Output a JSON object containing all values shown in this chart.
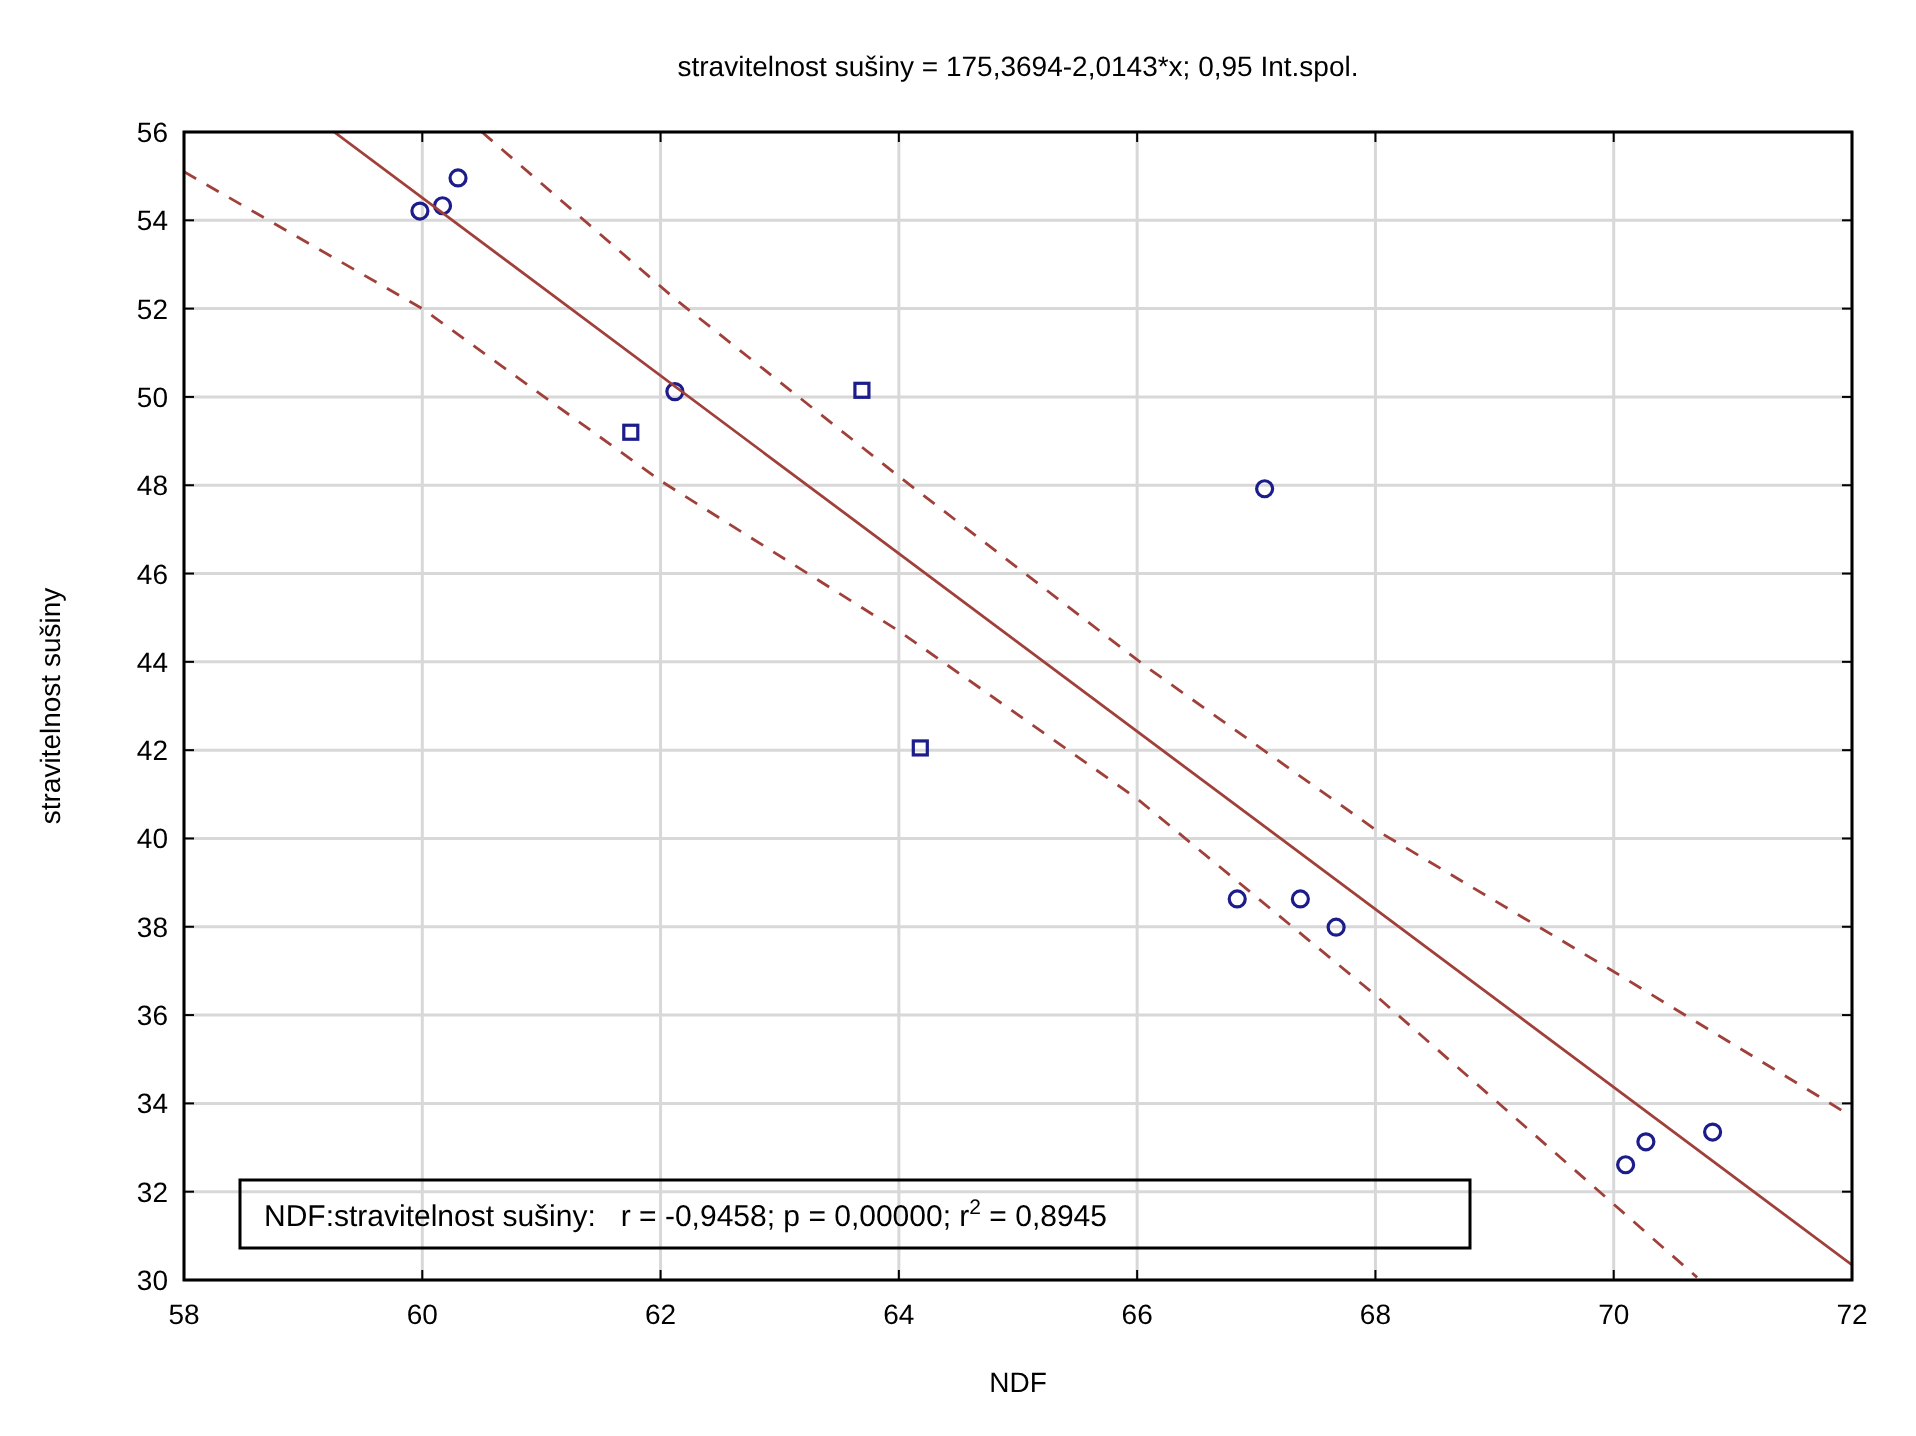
{
  "chart_data": {
    "type": "scatter",
    "title": "stravitelnost sušiny = 175,3694-2,0143*x; 0,95 Int.spol.",
    "xlabel": "NDF",
    "ylabel": "stravitelnost sušiny",
    "xlim": [
      58,
      72
    ],
    "xticks": [
      58,
      60,
      62,
      64,
      66,
      68,
      70,
      72
    ],
    "ylim": [
      30,
      56
    ],
    "yticks": [
      30,
      32,
      34,
      36,
      38,
      40,
      42,
      44,
      46,
      48,
      50,
      52,
      54,
      56
    ],
    "grid": true,
    "series": [
      {
        "marker": "circle",
        "color": "#1c1c8a",
        "x": [
          59.98,
          60.17,
          60.3,
          62.12,
          67.07,
          66.84,
          67.37,
          67.67,
          70.1,
          70.27,
          70.83
        ],
        "values": [
          54.21,
          54.33,
          54.96,
          50.12,
          47.92,
          38.63,
          38.63,
          37.99,
          32.61,
          33.13,
          33.35
        ]
      },
      {
        "marker": "square",
        "color": "#1c1c8a",
        "x": [
          61.75,
          63.69,
          64.18
        ],
        "values": [
          49.2,
          50.15,
          42.05
        ]
      },
      {
        "type": "line",
        "line_style": "solid",
        "color": "#a0403a",
        "x": [
          59.26,
          72
        ],
        "values": [
          56,
          30.34
        ]
      },
      {
        "type": "line",
        "line_style": "dashed",
        "color": "#a0403a",
        "x": [
          60.5,
          62.13,
          64,
          66.07,
          68,
          69.96,
          72
        ],
        "values": [
          56,
          52.2,
          48.2,
          43.9,
          40.2,
          37.05,
          33.7
        ]
      },
      {
        "type": "line",
        "line_style": "dashed",
        "color": "#a0403a",
        "x": [
          58,
          60,
          62,
          64,
          66,
          68,
          70.7
        ],
        "values": [
          55.1,
          52,
          48.1,
          44.7,
          40.9,
          36.45,
          30.06
        ]
      }
    ],
    "annotations": [
      "NDF:stravitelnost sušiny:   r = -0,9458; p = 0,00000; r$^{2}$ = 0,8945"
    ]
  }
}
